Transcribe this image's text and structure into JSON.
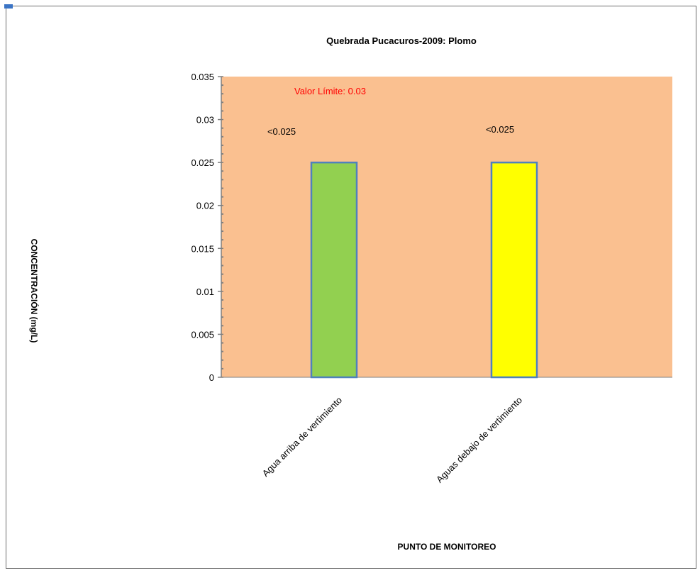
{
  "chart_data": {
    "type": "bar",
    "title": "Quebrada Pucacuros-2009: Plomo",
    "xlabel": "PUNTO DE MONITOREO",
    "ylabel": "CONCENTRACIÓN (mg/L)",
    "categories": [
      "Agua arriba de vertimiento",
      "Aguas debajo de vertimiento"
    ],
    "values": [
      0.025,
      0.025
    ],
    "data_labels": [
      "<0.025",
      "<0.025"
    ],
    "bar_colors": [
      "#92d050",
      "#ffff00"
    ],
    "bar_border": "#4f81bd",
    "ylim": [
      0,
      0.035
    ],
    "yticks": [
      0,
      0.005,
      0.01,
      0.015,
      0.02,
      0.025,
      0.03,
      0.035
    ],
    "ytick_labels": [
      "0",
      "0.005",
      "0.01",
      "0.015",
      "0.02",
      "0.025",
      "0.03",
      "0.035"
    ],
    "annotation": "Valor Límite: 0.03",
    "annotation_color": "#ff0000",
    "plot_background": "#fac090",
    "grid": false,
    "legend": "none"
  }
}
